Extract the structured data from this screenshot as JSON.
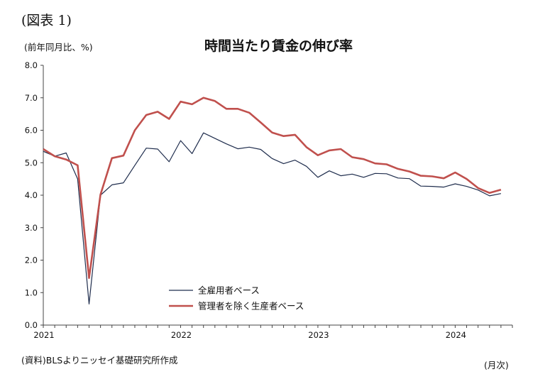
{
  "figure_label": "(図表 1)",
  "unit_label": "(前年同月比、%)",
  "x_unit_label": "(月次)",
  "source_note": "(資料)BLSよりニッセイ基礎研究所作成",
  "chart_data": {
    "type": "line",
    "title": "時間当たり賃金の伸び率",
    "xlabel": "",
    "ylabel": "(前年同月比、%)",
    "ylim": [
      0,
      8
    ],
    "yticks": [
      "0.0",
      "1.0",
      "2.0",
      "3.0",
      "4.0",
      "5.0",
      "6.0",
      "7.0",
      "8.0"
    ],
    "xticks": [
      {
        "label": "2021",
        "index": 0
      },
      {
        "label": "2022",
        "index": 12
      },
      {
        "label": "2023",
        "index": 24
      },
      {
        "label": "2024",
        "index": 36
      }
    ],
    "grid": false,
    "legend_placement": "lower-middle",
    "x": [
      "2021-01",
      "2021-02",
      "2021-03",
      "2021-04",
      "2021-05",
      "2021-06",
      "2021-07",
      "2021-08",
      "2021-09",
      "2021-10",
      "2021-11",
      "2021-12",
      "2022-01",
      "2022-02",
      "2022-03",
      "2022-04",
      "2022-05",
      "2022-06",
      "2022-07",
      "2022-08",
      "2022-09",
      "2022-10",
      "2022-11",
      "2022-12",
      "2023-01",
      "2023-02",
      "2023-03",
      "2023-04",
      "2023-05",
      "2023-06",
      "2023-07",
      "2023-08",
      "2023-09",
      "2023-10",
      "2023-11",
      "2023-12",
      "2024-01",
      "2024-02",
      "2024-03",
      "2024-04",
      "2024-05"
    ],
    "series": [
      {
        "name": "全雇用者ベース",
        "color": "#1f2d4d",
        "values": [
          5.35,
          5.2,
          5.3,
          4.5,
          0.65,
          4.0,
          4.32,
          4.38,
          4.92,
          5.45,
          5.42,
          5.03,
          5.68,
          5.28,
          5.92,
          5.75,
          5.58,
          5.43,
          5.48,
          5.41,
          5.13,
          4.97,
          5.08,
          4.89,
          4.55,
          4.75,
          4.6,
          4.65,
          4.55,
          4.67,
          4.66,
          4.53,
          4.51,
          4.28,
          4.27,
          4.25,
          4.35,
          4.27,
          4.16,
          3.98,
          4.05
        ]
      },
      {
        "name": "管理者を除く生産者ベース",
        "color": "#c0504d",
        "values": [
          5.42,
          5.2,
          5.1,
          4.92,
          1.45,
          4.02,
          5.14,
          5.22,
          6.0,
          6.47,
          6.57,
          6.35,
          6.88,
          6.8,
          7.0,
          6.9,
          6.66,
          6.66,
          6.54,
          6.24,
          5.93,
          5.82,
          5.86,
          5.48,
          5.23,
          5.38,
          5.42,
          5.17,
          5.11,
          4.98,
          4.95,
          4.81,
          4.73,
          4.6,
          4.58,
          4.52,
          4.7,
          4.5,
          4.22,
          4.07,
          4.17
        ]
      }
    ]
  }
}
